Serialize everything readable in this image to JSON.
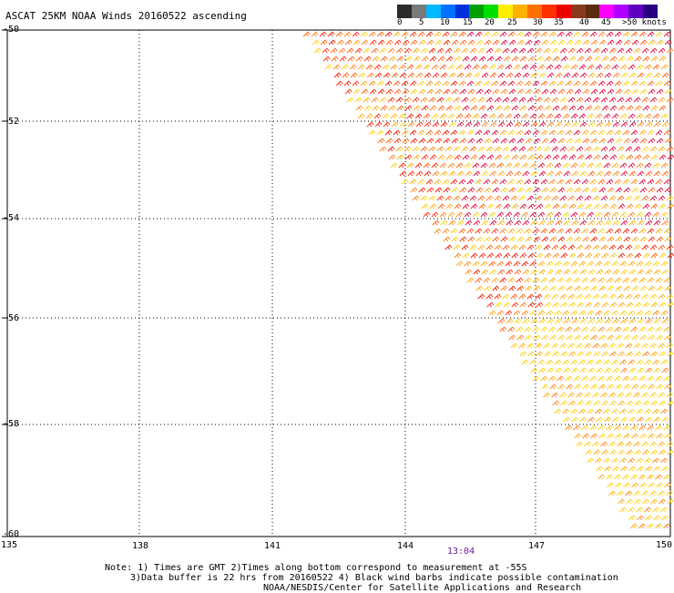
{
  "title": "ASCAT 25KM NOAA Winds 20160522 ascending",
  "color_scale": {
    "colors": [
      "#2b2b2b",
      "#7a7a7a",
      "#00b8ff",
      "#0070ff",
      "#0030dd",
      "#00a000",
      "#00dd00",
      "#ffee00",
      "#ffb000",
      "#ff7000",
      "#ff3000",
      "#ee0000",
      "#8b3a1e",
      "#5a2b10",
      "#ff00ff",
      "#b000ff",
      "#6000c0",
      "#2a0080"
    ],
    "labels": [
      "0",
      "5",
      "10",
      "15",
      "20",
      "25",
      "30",
      "35",
      "40",
      "45",
      ">50 knots"
    ]
  },
  "map": {
    "lat_labels": [
      "-50",
      "-52",
      "-54",
      "-56",
      "-58",
      "-60"
    ],
    "lon_labels": [
      "135",
      "138",
      "141",
      "144",
      "147",
      "150"
    ],
    "time_label": "13:04"
  },
  "notes": {
    "line1": "Note: 1) Times are GMT 2)Times along bottom correspond to measurement at -55S",
    "line2": "3)Data buffer is 22 hrs from 20160522 4) Black wind barbs indicate possible contamination",
    "line3": "NOAA/NESDIS/Center for Satellite Applications and Research"
  }
}
